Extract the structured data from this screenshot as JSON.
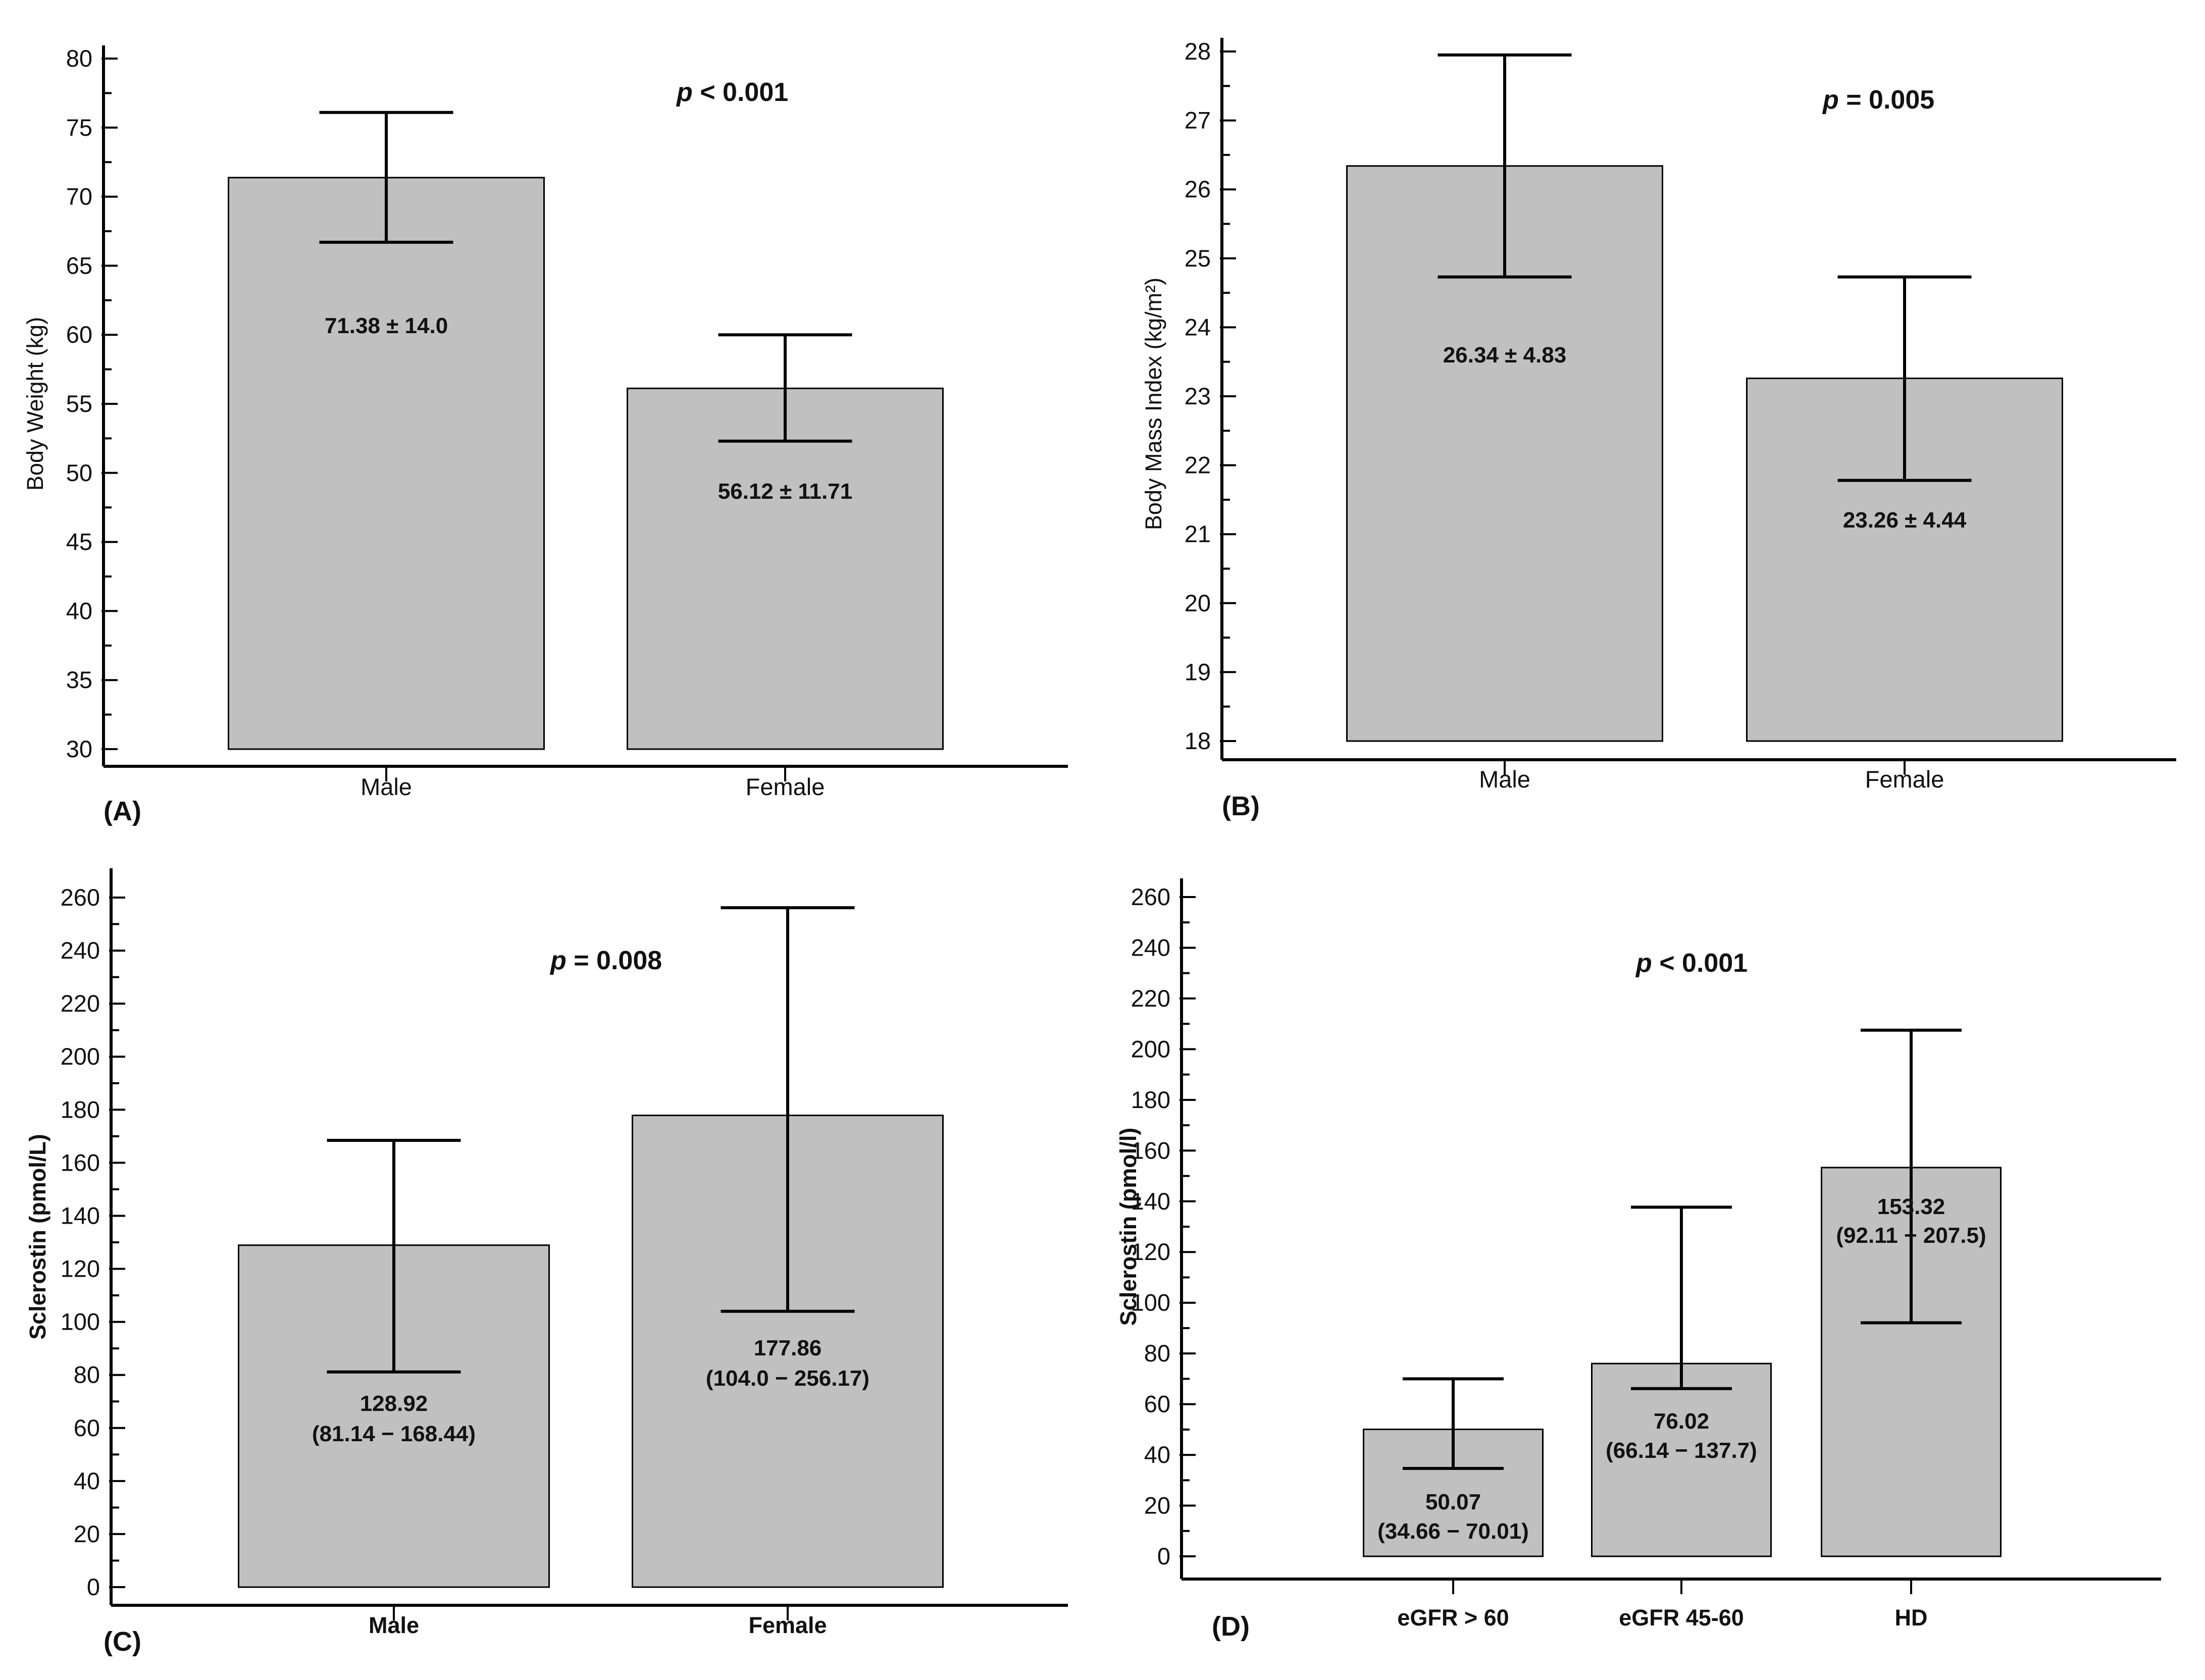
{
  "chart_data": [
    {
      "panel": "(A)",
      "type": "bar",
      "ylabel": "Body Weight (kg)",
      "categories": [
        "Male",
        "Female"
      ],
      "values": [
        71.38,
        56.12
      ],
      "error_low": [
        66.7,
        52.3
      ],
      "error_high": [
        76.1,
        60.0
      ],
      "bar_labels": [
        [
          "71.38 ± 14.0"
        ],
        [
          "56.12 ± 11.71"
        ]
      ],
      "ylim": [
        30,
        80
      ],
      "yticks": [
        30,
        35,
        40,
        45,
        50,
        55,
        60,
        65,
        70,
        75,
        80
      ],
      "ytick_labels": [
        "30",
        "35",
        "40",
        "45",
        "50",
        "55",
        "60",
        "65",
        "70",
        "75",
        "80"
      ],
      "p_prefix": "p",
      "p_suffix": " < 0.001",
      "bold_axis": false
    },
    {
      "panel": "(B)",
      "type": "bar",
      "ylabel": "Body Mass Index (kg/m²)",
      "categories": [
        "Male",
        "Female"
      ],
      "values": [
        26.34,
        23.26
      ],
      "error_low": [
        24.73,
        21.78
      ],
      "error_high": [
        27.95,
        24.73
      ],
      "bar_labels": [
        [
          "26.34 ± 4.83"
        ],
        [
          "23.26 ± 4.44"
        ]
      ],
      "ylim": [
        18,
        28
      ],
      "yticks": [
        18,
        19,
        20,
        21,
        22,
        23,
        24,
        25,
        26,
        27,
        28
      ],
      "ytick_labels": [
        "18",
        "19",
        "20",
        "21",
        "22",
        "23",
        "24",
        "25",
        "26",
        "27",
        "28"
      ],
      "p_prefix": "p",
      "p_suffix": " = 0.005",
      "bold_axis": false
    },
    {
      "panel": "(C)",
      "type": "bar",
      "ylabel": "Sclerostin (pmol/L)",
      "categories": [
        "Male",
        "Female"
      ],
      "values": [
        128.92,
        177.86
      ],
      "error_low": [
        81.14,
        104.0
      ],
      "error_high": [
        168.44,
        256.17
      ],
      "bar_labels": [
        [
          "128.92",
          "(81.14 − 168.44)"
        ],
        [
          "177.86",
          "(104.0 − 256.17)"
        ]
      ],
      "ylim": [
        0,
        260
      ],
      "yticks": [
        0,
        20,
        40,
        60,
        80,
        100,
        120,
        140,
        160,
        180,
        200,
        220,
        240,
        260
      ],
      "ytick_labels": [
        "0",
        "20",
        "40",
        "60",
        "80",
        "100",
        "120",
        "140",
        "160",
        "180",
        "200",
        "220",
        "240",
        "260"
      ],
      "p_prefix": "p",
      "p_suffix": " = 0.008",
      "bold_axis": true
    },
    {
      "panel": "(D)",
      "type": "bar",
      "ylabel": "Sclerostin (pmol/l)",
      "categories": [
        "eGFR > 60",
        "eGFR 45-60",
        "HD"
      ],
      "values": [
        50.07,
        76.02,
        153.32
      ],
      "error_low": [
        34.66,
        66.14,
        92.11
      ],
      "error_high": [
        70.01,
        137.7,
        207.5
      ],
      "bar_labels": [
        [
          "50.07",
          "(34.66 − 70.01)"
        ],
        [
          "76.02",
          "(66.14 − 137.7)"
        ],
        [
          "153.32",
          "(92.11 − 207.5)"
        ]
      ],
      "ylim": [
        0,
        260
      ],
      "yticks": [
        0,
        20,
        40,
        60,
        80,
        100,
        120,
        140,
        160,
        180,
        200,
        220,
        240,
        260
      ],
      "ytick_labels": [
        "0",
        "20",
        "40",
        "60",
        "80",
        "100",
        "120",
        "140",
        "160",
        "180",
        "200",
        "220",
        "240",
        "260"
      ],
      "p_prefix": "p",
      "p_suffix": " < 0.001",
      "bold_axis": true
    }
  ]
}
